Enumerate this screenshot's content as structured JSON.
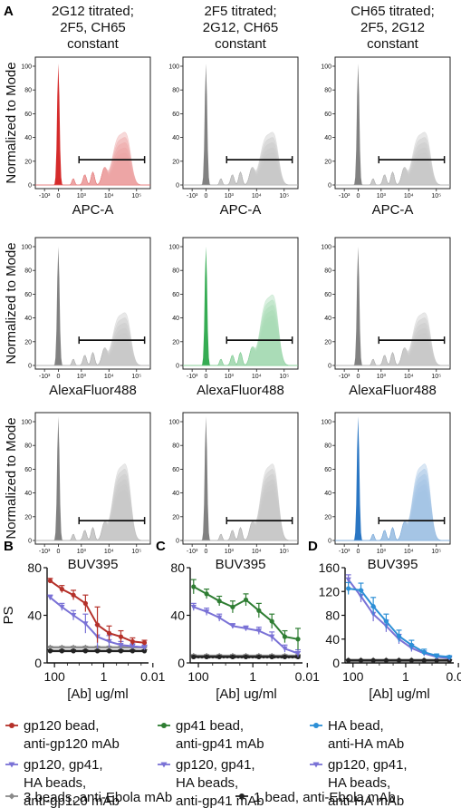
{
  "panel_letters": {
    "a": "A",
    "b": "B",
    "c": "C",
    "d": "D"
  },
  "flow": {
    "ylabel": "Normalized to Mode",
    "column_titles": [
      [
        "2G12 titrated;",
        "2F5, CH65",
        "constant"
      ],
      [
        "2F5 titrated;",
        "2G12, CH65",
        "constant"
      ],
      [
        "CH65 titrated;",
        "2F5, 2G12",
        "constant"
      ]
    ],
    "row_xlabels": [
      "APC-A",
      "AlexaFluor488",
      "BUV395"
    ],
    "yticks": [
      "0",
      "20",
      "40",
      "60",
      "80",
      "100"
    ],
    "xticks": [
      "-10³",
      "0",
      "10³",
      "10⁴",
      "10⁵"
    ],
    "colors": {
      "red": "#d32020",
      "green": "#2aa84a",
      "blue": "#1f6fc0",
      "gray": "#7a7a7a"
    },
    "highlight": [
      [
        0,
        0,
        "red"
      ],
      [
        1,
        1,
        "green"
      ],
      [
        2,
        2,
        "blue"
      ]
    ]
  },
  "chart_data": [
    {
      "panel": "B",
      "type": "line",
      "xscale": "log",
      "xreversed": true,
      "xlabel": "[Ab] ug/ml",
      "ylabel": "PS",
      "ylim": [
        0,
        80
      ],
      "yticks": [
        0,
        40,
        80
      ],
      "xticks": [
        100,
        1,
        0.01
      ],
      "xtick_labels": [
        "100",
        "1",
        "0.01"
      ],
      "x": [
        150,
        50,
        17,
        5.5,
        1.8,
        0.6,
        0.2,
        0.067,
        0.022
      ],
      "series": [
        {
          "name": "gp120 bead, anti-gp120 mAb",
          "color": "#b5312a",
          "marker": "circle",
          "values": [
            69,
            62,
            57,
            50,
            32,
            25,
            22,
            18,
            17
          ],
          "err": [
            2,
            3,
            4,
            7,
            15,
            6,
            5,
            3,
            2
          ]
        },
        {
          "name": "gp120, gp41, HA beads, anti-gp120 mAb",
          "color": "#7a72d6",
          "marker": "triangle",
          "values": [
            55,
            47,
            40,
            33,
            22,
            18,
            15,
            14,
            13
          ],
          "err": [
            2,
            3,
            4,
            8,
            10,
            5,
            3,
            2,
            2
          ]
        },
        {
          "name": "3 beads, anti-Ebola mAb",
          "color": "#8a8a8a",
          "marker": "diamond",
          "values": [
            13,
            13,
            13,
            13,
            13,
            13,
            13,
            13,
            13
          ],
          "err": [
            1,
            1,
            1,
            1,
            1,
            1,
            1,
            1,
            1
          ]
        },
        {
          "name": "1 bead, anti-Ebola mAb",
          "color": "#222222",
          "marker": "circle",
          "values": [
            10,
            10,
            10,
            10,
            10,
            10,
            10,
            10,
            10
          ],
          "err": [
            1,
            1,
            1,
            1,
            1,
            1,
            1,
            1,
            1
          ]
        }
      ],
      "threshold": 10
    },
    {
      "panel": "C",
      "type": "line",
      "xscale": "log",
      "xreversed": true,
      "xlabel": "[Ab] ug/ml",
      "ylabel": "",
      "ylim": [
        0,
        80
      ],
      "yticks": [
        0,
        40,
        80
      ],
      "xticks": [
        100,
        1,
        0.01
      ],
      "xtick_labels": [
        "100",
        "1",
        "0.01"
      ],
      "x": [
        150,
        50,
        17,
        5.5,
        1.8,
        0.6,
        0.2,
        0.067,
        0.022
      ],
      "series": [
        {
          "name": "gp41 bead, anti-gp41 mAb",
          "color": "#2e7d32",
          "marker": "circle",
          "values": [
            64,
            58,
            52,
            47,
            53,
            44,
            35,
            22,
            20
          ],
          "err": [
            6,
            4,
            4,
            5,
            5,
            6,
            6,
            5,
            9
          ]
        },
        {
          "name": "gp120, gp41, HA beads, anti-gp41 mAb",
          "color": "#7a72d6",
          "marker": "triangle",
          "values": [
            47,
            43,
            38,
            31,
            29,
            27,
            22,
            12,
            8
          ],
          "err": [
            3,
            3,
            3,
            2,
            2,
            3,
            4,
            3,
            3
          ]
        },
        {
          "name": "3 beads, anti-Ebola mAb",
          "color": "#8a8a8a",
          "marker": "diamond",
          "values": [
            6,
            6,
            6,
            6,
            6,
            6,
            6,
            6,
            6
          ],
          "err": [
            1,
            1,
            1,
            1,
            1,
            1,
            1,
            1,
            1
          ]
        },
        {
          "name": "1 bead, anti-Ebola mAb",
          "color": "#222222",
          "marker": "circle",
          "values": [
            5,
            5,
            5,
            5,
            5,
            5,
            5,
            5,
            5
          ],
          "err": [
            1,
            1,
            1,
            1,
            1,
            1,
            1,
            1,
            1
          ]
        }
      ],
      "threshold": 4
    },
    {
      "panel": "D",
      "type": "line",
      "xscale": "log",
      "xreversed": true,
      "xlabel": "[Ab] ug/ml",
      "ylabel": "",
      "ylim": [
        0,
        160
      ],
      "yticks": [
        0,
        40,
        80,
        120,
        160
      ],
      "xticks": [
        100,
        1,
        0.01
      ],
      "xtick_labels": [
        "100",
        "1",
        "0.01"
      ],
      "x": [
        150,
        50,
        17,
        5.5,
        1.8,
        0.6,
        0.2,
        0.067,
        0.022
      ],
      "series": [
        {
          "name": "HA bead, anti-HA mAb",
          "color": "#2c8fd6",
          "marker": "circle",
          "values": [
            125,
            122,
            95,
            70,
            45,
            30,
            18,
            12,
            10
          ],
          "err": [
            10,
            12,
            15,
            12,
            10,
            8,
            5,
            3,
            2
          ]
        },
        {
          "name": "gp120, gp41, HA beads, anti-HA mAb",
          "color": "#7a72d6",
          "marker": "triangle",
          "values": [
            140,
            112,
            82,
            62,
            40,
            25,
            16,
            10,
            8
          ],
          "err": [
            8,
            10,
            12,
            10,
            8,
            6,
            4,
            2,
            2
          ]
        },
        {
          "name": "3 beads, anti-Ebola mAb",
          "color": "#8a8a8a",
          "marker": "diamond",
          "values": [
            5,
            5,
            5,
            5,
            5,
            5,
            5,
            5,
            5
          ],
          "err": [
            1,
            1,
            1,
            1,
            1,
            1,
            1,
            1,
            1
          ]
        },
        {
          "name": "1 bead, anti-Ebola mAb",
          "color": "#222222",
          "marker": "circle",
          "values": [
            4,
            4,
            4,
            4,
            4,
            4,
            4,
            4,
            4
          ],
          "err": [
            1,
            1,
            1,
            1,
            1,
            1,
            1,
            1,
            1
          ]
        }
      ],
      "threshold": 4
    }
  ],
  "legends": {
    "B": [
      {
        "lines": [
          "gp120 bead,",
          "anti-gp120 mAb"
        ],
        "color": "#b5312a",
        "marker": "circle"
      },
      {
        "lines": [
          "gp120, gp41,",
          "HA beads,",
          "anti-gp120 mAb"
        ],
        "color": "#7a72d6",
        "marker": "triangle"
      }
    ],
    "C": [
      {
        "lines": [
          "gp41 bead,",
          "anti-gp41 mAb"
        ],
        "color": "#2e7d32",
        "marker": "circle"
      },
      {
        "lines": [
          "gp120, gp41,",
          "HA beads,",
          "anti-gp41 mAb"
        ],
        "color": "#7a72d6",
        "marker": "triangle"
      }
    ],
    "D": [
      {
        "lines": [
          "HA bead,",
          "anti-HA mAb"
        ],
        "color": "#2c8fd6",
        "marker": "circle"
      },
      {
        "lines": [
          "gp120, gp41,",
          "HA beads,",
          "anti-HA mAb"
        ],
        "color": "#7a72d6",
        "marker": "triangle"
      }
    ],
    "bottom": [
      {
        "label": "3 beads, anti-Ebola mAb",
        "color": "#8a8a8a",
        "marker": "diamond"
      },
      {
        "label": "1 bead, anti-Ebola mAb",
        "color": "#222222",
        "marker": "circle"
      }
    ]
  }
}
